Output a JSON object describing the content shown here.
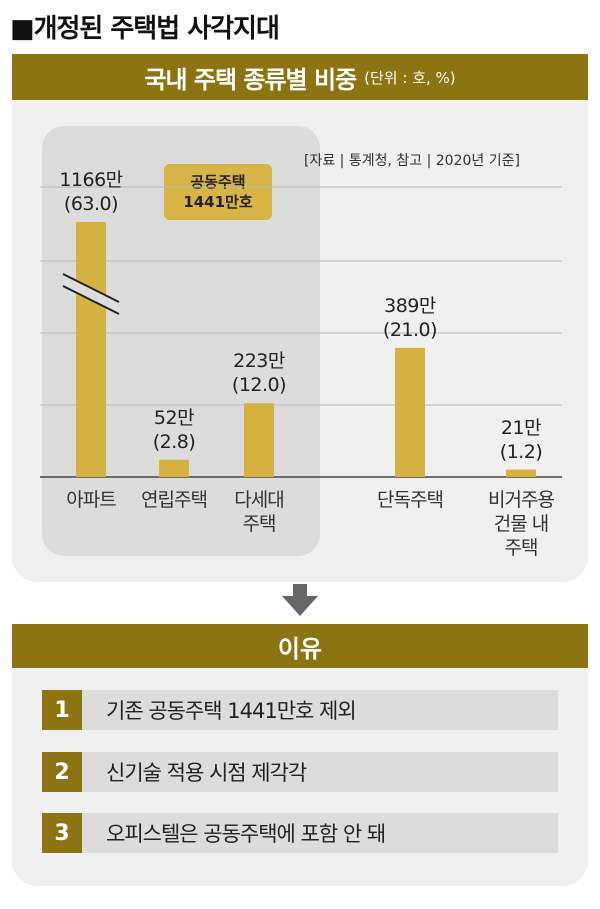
{
  "headline": "■개정된 주택법 사각지대",
  "chart_data": {
    "type": "bar",
    "title": "국내 주택 종류별 비중",
    "unit": "(단위 : 호, %)",
    "source": "[자료 | 통계청, 참고 | 2020년 기준]",
    "group_label": [
      "공동주택",
      "1441만호"
    ],
    "categories": [
      [
        "아파트"
      ],
      [
        "연립주택"
      ],
      [
        "다세대",
        "주택"
      ],
      [
        "단독주택"
      ],
      [
        "비거주용",
        "건물 내",
        "주택"
      ]
    ],
    "values": [
      63.0,
      2.8,
      12.0,
      21.0,
      1.2
    ],
    "value_labels": [
      "1166만",
      "52만",
      "223만",
      "389만",
      "21만"
    ],
    "pct_labels": [
      "(63.0)",
      "(2.8)",
      "(12.0)",
      "(21.0)",
      "(1.2)"
    ],
    "broken_axis_on": "아파트",
    "grid": true,
    "bar_color": "#d5b142"
  },
  "reasons": {
    "title": "이유",
    "items": [
      {
        "num": "1",
        "text": "기존 공동주택 1441만호 제외"
      },
      {
        "num": "2",
        "text": "신기술 적용 시점 제각각"
      },
      {
        "num": "3",
        "text": "오피스텔은 공동주택에 포함 안 돼"
      }
    ]
  },
  "colors": {
    "accent": "#8c7413",
    "bar": "#d5b142",
    "panel": "#f0f0f0",
    "group_box": "#dcdcdc"
  }
}
